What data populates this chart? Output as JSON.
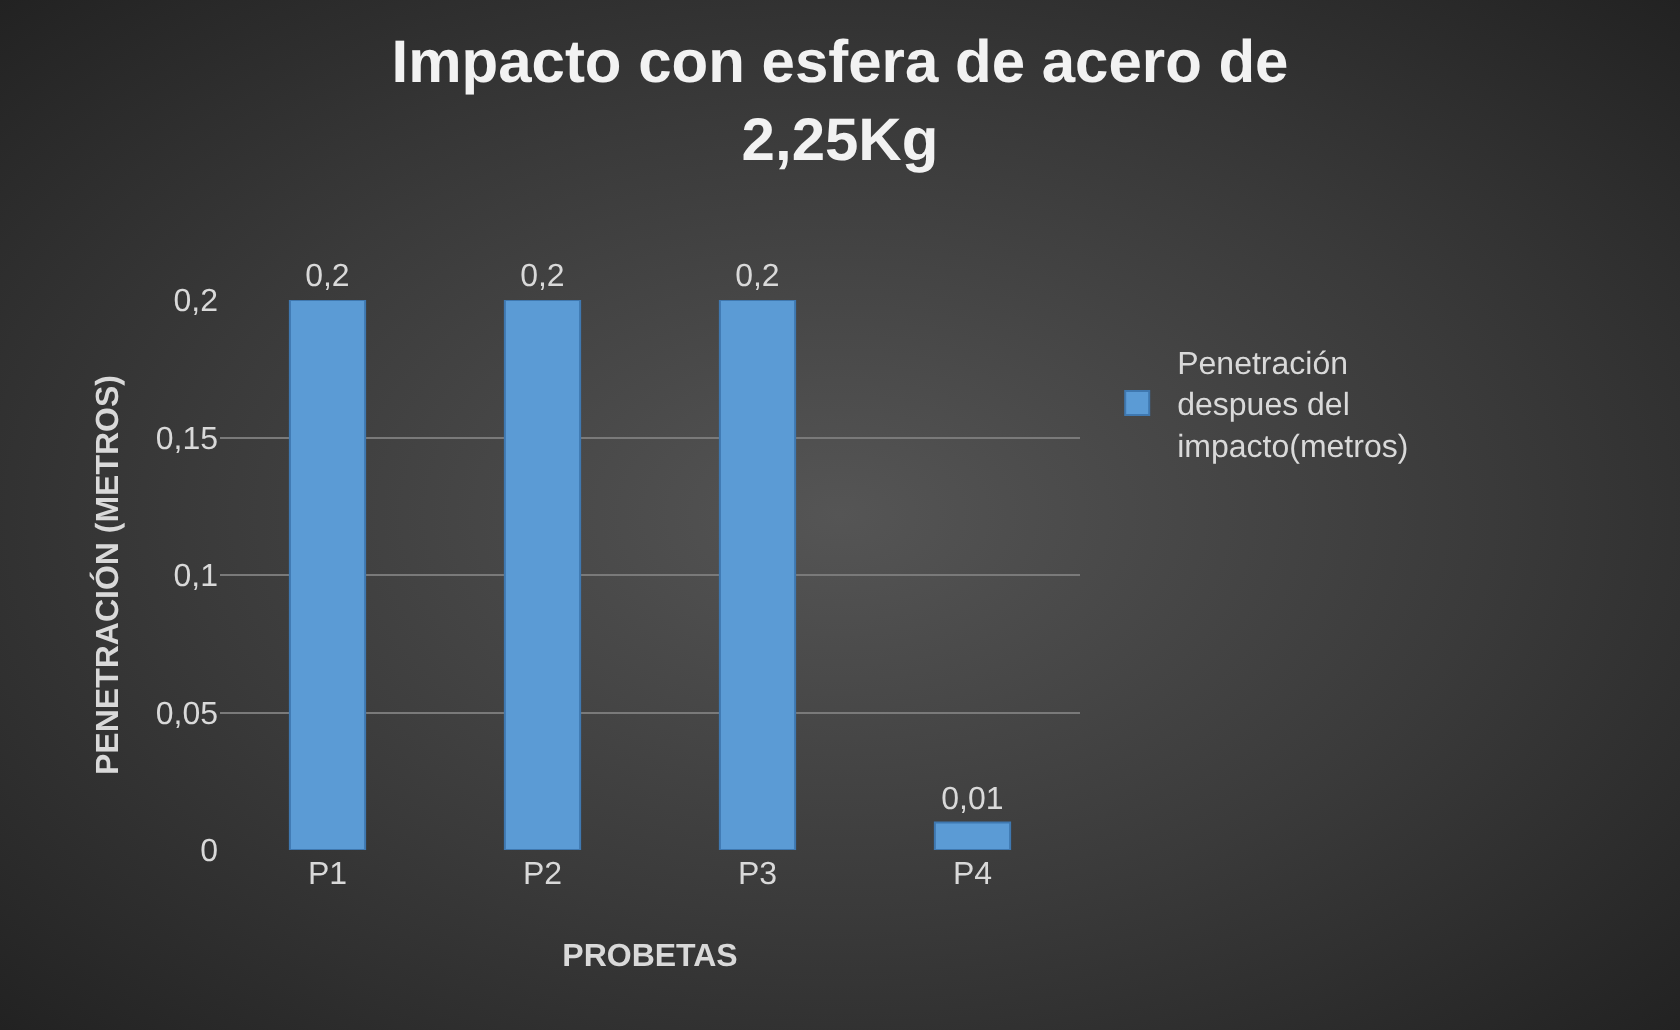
{
  "chart_data": {
    "type": "bar",
    "title": "Impacto con esfera de acero de 2,25Kg",
    "xlabel": "PROBETAS",
    "ylabel": "PENETRACIÓN (METROS)",
    "categories": [
      "P1",
      "P2",
      "P3",
      "P4"
    ],
    "series": [
      {
        "name": "Penetración despues del impacto(metros)",
        "color": "#5b9bd5",
        "values": [
          0.2,
          0.2,
          0.2,
          0.01
        ],
        "value_labels": [
          "0,2",
          "0,2",
          "0,2",
          "0,01"
        ]
      }
    ],
    "ylim": [
      0,
      0.2
    ],
    "yticks": [
      {
        "value": 0,
        "label": "0"
      },
      {
        "value": 0.05,
        "label": "0,05"
      },
      {
        "value": 0.1,
        "label": "0,1"
      },
      {
        "value": 0.15,
        "label": "0,15"
      },
      {
        "value": 0.2,
        "label": "0,2"
      }
    ],
    "grid": "y",
    "legend": "right"
  }
}
